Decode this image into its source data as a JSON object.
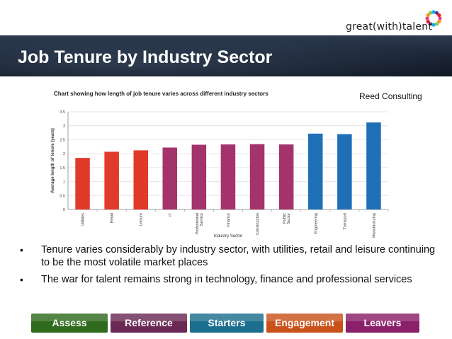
{
  "logo": {
    "text": "great(with)talent",
    "colors": [
      "#e83e8c",
      "#f7941d",
      "#8dc63f",
      "#00aeef",
      "#662d91",
      "#ed1c24"
    ]
  },
  "slide": {
    "title": "Job Tenure by Industry Sector",
    "source": "Reed Consulting"
  },
  "chart_data": {
    "type": "bar",
    "title": "Chart showing how length of job tenure varies across different industry sectors",
    "xlabel": "Industry Sector",
    "ylabel": "Average length of tenure (years)",
    "ylim": [
      0,
      3.5
    ],
    "yticks": [
      "0",
      "0.5",
      "1",
      "1.5",
      "2",
      "2.5",
      "3",
      "3.5"
    ],
    "grid": true,
    "categories": [
      "Utilities",
      "Retail",
      "Leisure",
      "IT",
      "Professional Service",
      "Finance",
      "Construction",
      "Public Sector",
      "Engineering",
      "Transport",
      "Manufacturing"
    ],
    "values": [
      1.85,
      2.07,
      2.12,
      2.22,
      2.32,
      2.33,
      2.34,
      2.33,
      2.72,
      2.7,
      3.12
    ],
    "colors": [
      "#e03a2a",
      "#e03a2a",
      "#e03a2a",
      "#a4336c",
      "#a4336c",
      "#a4336c",
      "#a4336c",
      "#a4336c",
      "#1f6fb8",
      "#1f6fb8",
      "#1f6fb8"
    ]
  },
  "bullets": [
    "Tenure varies considerably by industry sector, with utilities, retail and leisure continuing to be the most volatile market places",
    "The war for talent remains strong in technology, finance and professional services"
  ],
  "bullet_symbol": "•",
  "nav": {
    "tabs": [
      {
        "label": "Assess",
        "color": "#2f6b1e"
      },
      {
        "label": "Reference",
        "color": "#6a2a55"
      },
      {
        "label": "Starters",
        "color": "#1c6e8e"
      },
      {
        "label": "Engagement",
        "color": "#c9521b"
      },
      {
        "label": "Leavers",
        "color": "#8a1f6a"
      }
    ]
  }
}
